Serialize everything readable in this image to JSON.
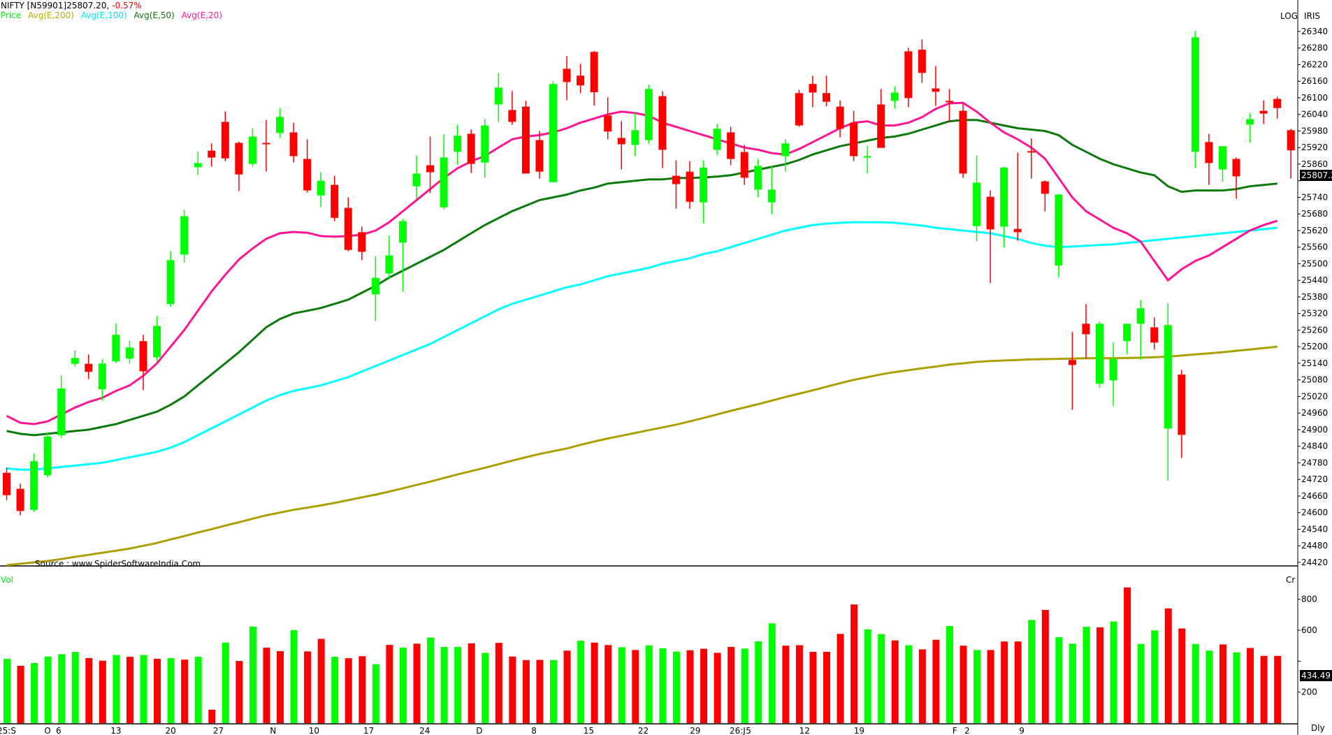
{
  "header": {
    "symbol": "NIFTY [N59901]25807.20,",
    "change": "-0.57%",
    "legend": [
      {
        "label": "Price",
        "color": "#00ee00"
      },
      {
        "label": "Avg(E,200)",
        "color": "#b5ad00"
      },
      {
        "label": "Avg(E,100)",
        "color": "#00e5ee"
      },
      {
        "label": "Avg(E,50)",
        "color": "#0a7a0a"
      },
      {
        "label": "Avg(E,20)",
        "color": "#ff1493"
      }
    ]
  },
  "toolbar": {
    "log_label": "LOG",
    "iris_label": "IRIS"
  },
  "source_text": "Source : www.SpiderSoftwareIndia.Com",
  "volume_panel": {
    "label": "Vol",
    "unit_label": "Cr",
    "last_value": "434.49"
  },
  "period_label": "Dly",
  "last_price_label": "25807.2",
  "colors": {
    "up": "#00ff00",
    "down": "#ff0000",
    "ema20": "#ff1493",
    "ema50": "#0a7a0a",
    "ema100": "#00ffff",
    "ema200": "#aaa000"
  },
  "chart_data": [
    {
      "type": "candlestick",
      "title": "NIFTY [N59901] 25807.20, -0.57%",
      "xlabel": "",
      "ylabel": "Price",
      "scale": "log",
      "ylim": [
        24400,
        26380
      ],
      "yticks": [
        26340,
        26280,
        26220,
        26160,
        26100,
        26040,
        25980,
        25920,
        25860,
        25800,
        25740,
        25680,
        25620,
        25560,
        25500,
        25440,
        25380,
        25320,
        25260,
        25200,
        25140,
        25080,
        25020,
        24960,
        24900,
        24840,
        24780,
        24720,
        24660,
        24600,
        24540,
        24480,
        24420
      ],
      "ytick_labels_shown": [
        "26340",
        "26280",
        "26220",
        "26160",
        "26100",
        "26040",
        "25980",
        "25920",
        "25860",
        "25740",
        "25680",
        "25620",
        "25560",
        "25500",
        "25440",
        "25380",
        "25320",
        "25260",
        "25200",
        "25140",
        "25080",
        "25020",
        "24960",
        "24900",
        "24840",
        "24780",
        "24720",
        "24660",
        "24600",
        "24540",
        "24480",
        "24420"
      ],
      "xtick_labels": [
        {
          "index": 0,
          "label": "25:S"
        },
        {
          "index": 3,
          "label": "O"
        },
        {
          "index": 3.8,
          "label": "6"
        },
        {
          "index": 8,
          "label": "13"
        },
        {
          "index": 12,
          "label": "20"
        },
        {
          "index": 15.5,
          "label": "27"
        },
        {
          "index": 19.5,
          "label": "N"
        },
        {
          "index": 22.5,
          "label": "10"
        },
        {
          "index": 26.5,
          "label": "17"
        },
        {
          "index": 30.6,
          "label": "24"
        },
        {
          "index": 34.6,
          "label": "D"
        },
        {
          "index": 38.6,
          "label": "8"
        },
        {
          "index": 42.6,
          "label": "15"
        },
        {
          "index": 46.6,
          "label": "22"
        },
        {
          "index": 50.4,
          "label": "29"
        },
        {
          "index": 53.5,
          "label": "26:J"
        },
        {
          "index": 54.3,
          "label": "5"
        },
        {
          "index": 58.4,
          "label": "12"
        },
        {
          "index": 62.4,
          "label": "19"
        },
        {
          "index": 69.4,
          "label": "F"
        },
        {
          "index": 70.3,
          "label": "2"
        },
        {
          "index": 74.3,
          "label": "9"
        }
      ],
      "legend": [
        "Price",
        "Avg(E,200)",
        "Avg(E,100)",
        "Avg(E,50)",
        "Avg(E,20)"
      ],
      "last_close": 25807.2,
      "change_pct": -0.57,
      "candles": [
        [
          24763,
          24744,
          24663,
          24645
        ],
        [
          24705,
          24686,
          24606,
          24590
        ],
        [
          24813,
          24786,
          24610,
          24602
        ],
        [
          24891,
          24875,
          24735,
          24727
        ],
        [
          25096,
          25049,
          24880,
          24870
        ],
        [
          25187,
          25159,
          25138,
          25128
        ],
        [
          25172,
          25138,
          25109,
          25083
        ],
        [
          25154,
          25139,
          25046,
          25005
        ],
        [
          25285,
          25243,
          25147,
          25140
        ],
        [
          25222,
          25197,
          25157,
          25139
        ],
        [
          25243,
          25220,
          25111,
          25043
        ],
        [
          25311,
          25275,
          25162,
          25146
        ],
        [
          25546,
          25513,
          25354,
          25344
        ],
        [
          25695,
          25672,
          25533,
          25503
        ],
        [
          25905,
          25864,
          25849,
          25821
        ],
        [
          25935,
          25909,
          25884,
          25851
        ],
        [
          26051,
          26013,
          25881,
          25871
        ],
        [
          25942,
          25937,
          25823,
          25763
        ],
        [
          25990,
          25960,
          25861,
          25851
        ],
        [
          26020,
          25937,
          25932,
          25834
        ],
        [
          26063,
          26031,
          25973,
          25955
        ],
        [
          26010,
          25975,
          25889,
          25866
        ],
        [
          25950,
          25879,
          25765,
          25757
        ],
        [
          25831,
          25800,
          25747,
          25704
        ],
        [
          25818,
          25785,
          25666,
          25654
        ],
        [
          25740,
          25702,
          25550,
          25545
        ],
        [
          25634,
          25614,
          25543,
          25513
        ],
        [
          25528,
          25449,
          25389,
          25293
        ],
        [
          25601,
          25530,
          25465,
          25444
        ],
        [
          25662,
          25654,
          25576,
          25399
        ],
        [
          25892,
          25826,
          25780,
          25735
        ],
        [
          25960,
          25856,
          25831,
          25755
        ],
        [
          25968,
          25884,
          25704,
          25697
        ],
        [
          26003,
          25963,
          25905,
          25857
        ],
        [
          25985,
          25970,
          25861,
          25828
        ],
        [
          26023,
          26000,
          25866,
          25811
        ],
        [
          26190,
          26137,
          26076,
          26013
        ],
        [
          26124,
          26056,
          26013,
          26002
        ],
        [
          26089,
          26068,
          25826,
          25866
        ],
        [
          25980,
          25947,
          25833,
          25808
        ],
        [
          26160,
          26150,
          25795,
          25795
        ],
        [
          26251,
          26205,
          26157,
          26092
        ],
        [
          26223,
          26180,
          26145,
          26117
        ],
        [
          26269,
          26266,
          26120,
          26072
        ],
        [
          26102,
          26036,
          25978,
          25950
        ],
        [
          26016,
          25955,
          25932,
          25841
        ],
        [
          26046,
          25983,
          25930,
          25889
        ],
        [
          26147,
          26132,
          25947,
          25934
        ],
        [
          26124,
          26106,
          25912,
          25846
        ],
        [
          25874,
          25818,
          25788,
          25699
        ],
        [
          25871,
          25833,
          25724,
          25699
        ],
        [
          25874,
          25848,
          25722,
          25646
        ],
        [
          26005,
          25988,
          25912,
          25894
        ],
        [
          25995,
          25975,
          25879,
          25856
        ],
        [
          25930,
          25904,
          25811,
          25785
        ],
        [
          25879,
          25854,
          25768,
          25740
        ],
        [
          25854,
          25768,
          25722,
          25679
        ],
        [
          25950,
          25935,
          25889,
          25833
        ],
        [
          26129,
          26117,
          26000,
          25995
        ],
        [
          26180,
          26150,
          26119,
          26066
        ],
        [
          26180,
          26117,
          26086,
          26069
        ],
        [
          26091,
          26068,
          25988,
          25957
        ],
        [
          26053,
          26010,
          25889,
          25871
        ],
        [
          25927,
          25889,
          25886,
          25826
        ],
        [
          26132,
          26076,
          25919,
          25919
        ],
        [
          26142,
          26119,
          26089,
          26061
        ],
        [
          26281,
          26268,
          26099,
          26066
        ],
        [
          26311,
          26274,
          26190,
          26154
        ],
        [
          26215,
          26134,
          26122,
          26071
        ],
        [
          26132,
          26089,
          26086,
          26015
        ],
        [
          26079,
          26053,
          25826,
          25811
        ],
        [
          25892,
          25793,
          25636,
          25581
        ],
        [
          25765,
          25742,
          25624,
          25430
        ],
        [
          25851,
          25848,
          25634,
          25558
        ],
        [
          25902,
          25626,
          25614,
          25583
        ],
        [
          25953,
          25907,
          25904,
          25808
        ],
        [
          25801,
          25798,
          25753,
          25689
        ],
        [
          25753,
          25750,
          25494,
          25450
        ],
        [
          25253,
          25152,
          25134,
          24972
        ],
        [
          25354,
          25283,
          25245,
          25157
        ],
        [
          25291,
          25283,
          25066,
          25051
        ],
        [
          25215,
          25156,
          25078,
          24985
        ],
        [
          25220,
          25283,
          25220,
          25172
        ],
        [
          25369,
          25339,
          25283,
          25152
        ],
        [
          25306,
          25270,
          25215,
          25189
        ],
        [
          25357,
          25278,
          24904,
          24715
        ],
        [
          25116,
          25099,
          24881,
          24798
        ],
        [
          26342,
          26319,
          25905,
          25846
        ],
        [
          25970,
          25940,
          25864,
          25785
        ],
        [
          25925,
          25925,
          25841,
          25796
        ],
        [
          25884,
          25879,
          25816,
          25735
        ],
        [
          26044,
          26023,
          26003,
          25937
        ],
        [
          26091,
          26053,
          26043,
          26005
        ],
        [
          26104,
          26096,
          26063,
          26025
        ],
        [
          25988,
          25983,
          25910,
          25808
        ]
      ],
      "candle_colors": "RRGGGGRGGGRGGGGRRRGRGRRGRRRGGGGRGGRGGRRRGRRRRRGGRRRGGRRGGGRRRRRGRGRRRRRGRGRRRGRRGGGGRGRGRGRGRR",
      "ema20": [
        24950,
        24925,
        24920,
        24930,
        24955,
        24980,
        25000,
        25015,
        25040,
        25060,
        25095,
        25140,
        25200,
        25260,
        25330,
        25400,
        25460,
        25515,
        25555,
        25590,
        25610,
        25615,
        25612,
        25600,
        25598,
        25600,
        25605,
        25620,
        25650,
        25690,
        25730,
        25770,
        25810,
        25845,
        25870,
        25890,
        25920,
        25950,
        25960,
        25965,
        25975,
        25990,
        26010,
        26025,
        26040,
        26050,
        26045,
        26035,
        26010,
        25995,
        25980,
        25965,
        25950,
        25935,
        25920,
        25912,
        25900,
        25895,
        25915,
        25940,
        25965,
        25990,
        26010,
        26015,
        26000,
        26000,
        26010,
        26030,
        26060,
        26080,
        26082,
        26050,
        26010,
        25975,
        25950,
        25920,
        25880,
        25810,
        25740,
        25690,
        25660,
        25630,
        25610,
        25580,
        25510,
        25440,
        25480,
        25510,
        25530,
        25560,
        25590,
        25620,
        25640,
        25655
      ],
      "ema50": [
        24895,
        24885,
        24880,
        24885,
        24890,
        24895,
        24900,
        24910,
        24920,
        24935,
        24950,
        24965,
        24990,
        25020,
        25060,
        25100,
        25140,
        25180,
        25225,
        25270,
        25300,
        25320,
        25330,
        25340,
        25355,
        25370,
        25395,
        25420,
        25450,
        25475,
        25500,
        25525,
        25550,
        25580,
        25610,
        25640,
        25665,
        25690,
        25710,
        25730,
        25740,
        25750,
        25765,
        25775,
        25790,
        25795,
        25800,
        25805,
        25805,
        25810,
        25810,
        25812,
        25815,
        25820,
        25830,
        25840,
        25850,
        25860,
        25875,
        25895,
        25910,
        25925,
        25935,
        25945,
        25955,
        25960,
        25970,
        25985,
        26000,
        26015,
        26020,
        26020,
        26010,
        26000,
        25990,
        25985,
        25980,
        25965,
        25930,
        25905,
        25880,
        25860,
        25845,
        25830,
        25820,
        25780,
        25760,
        25765,
        25765,
        25765,
        25770,
        25780,
        25785,
        25790
      ],
      "ema100": [
        24760,
        24755,
        24755,
        24760,
        24765,
        24770,
        24775,
        24780,
        24790,
        24800,
        24810,
        24820,
        24835,
        24855,
        24880,
        24905,
        24930,
        24955,
        24980,
        25005,
        25025,
        25040,
        25050,
        25060,
        25075,
        25090,
        25110,
        25130,
        25150,
        25170,
        25190,
        25210,
        25235,
        25260,
        25285,
        25310,
        25335,
        25355,
        25370,
        25385,
        25400,
        25415,
        25425,
        25440,
        25455,
        25465,
        25475,
        25485,
        25500,
        25510,
        25520,
        25535,
        25545,
        25560,
        25575,
        25590,
        25605,
        25620,
        25630,
        25640,
        25645,
        25648,
        25650,
        25650,
        25650,
        25648,
        25643,
        25638,
        25630,
        25625,
        25620,
        25615,
        25610,
        25600,
        25590,
        25575,
        25565,
        25560,
        25562,
        25565,
        25568,
        25570,
        25575,
        25580,
        25585,
        25590,
        25595,
        25600,
        25605,
        25610,
        25615,
        25620,
        25625,
        25630
      ],
      "ema200": [
        24410,
        24415,
        24420,
        24425,
        24432,
        24440,
        24447,
        24455,
        24462,
        24470,
        24480,
        24490,
        24503,
        24515,
        24528,
        24540,
        24553,
        24565,
        24578,
        24590,
        24600,
        24610,
        24618,
        24626,
        24635,
        24645,
        24655,
        24665,
        24676,
        24688,
        24700,
        24712,
        24725,
        24738,
        24750,
        24762,
        24775,
        24788,
        24800,
        24812,
        24822,
        24832,
        24845,
        24857,
        24868,
        24878,
        24888,
        24898,
        24908,
        24918,
        24930,
        24942,
        24955,
        24968,
        24980,
        24992,
        25005,
        25018,
        25030,
        25042,
        25055,
        25068,
        25080,
        25090,
        25100,
        25108,
        25115,
        25122,
        25128,
        25135,
        25140,
        25145,
        25148,
        25150,
        25152,
        25154,
        25155,
        25156,
        25157,
        25158,
        25158,
        25158,
        25159,
        25160,
        25162,
        25164,
        25168,
        25172,
        25176,
        25180,
        25185,
        25190,
        25195,
        25200
      ]
    },
    {
      "type": "bar",
      "title": "Vol",
      "ylabel": "Cr",
      "yticks": [
        200,
        400,
        600,
        800
      ],
      "values": [
        415,
        370,
        388,
        430,
        445,
        460,
        420,
        403,
        440,
        428,
        440,
        415,
        420,
        410,
        428,
        87,
        520,
        401,
        623,
        487,
        465,
        600,
        463,
        544,
        428,
        419,
        432,
        380,
        505,
        487,
        513,
        552,
        492,
        492,
        515,
        453,
        518,
        430,
        407,
        408,
        407,
        468,
        532,
        520,
        504,
        490,
        472,
        502,
        483,
        462,
        470,
        480,
        454,
        492,
        481,
        528,
        644,
        500,
        503,
        460,
        460,
        576,
        766,
        605,
        575,
        534,
        503,
        476,
        538,
        627,
        500,
        472,
        472,
        527,
        527,
        666,
        731,
        555,
        513,
        622,
        618,
        656,
        876,
        511,
        599,
        740,
        611,
        511,
        468,
        508,
        457,
        485,
        434,
        434
      ],
      "colors": "GRGGGGRRGRGRGRGRGRGRRGRRGRRGRGRGGGRGRRRRGRGRRGRGGGRRRRGGGRRRRRRGGRGRRGRGRRRGRGGGRGRGGRRGGRGRR",
      "last_value": 434.49
    }
  ]
}
